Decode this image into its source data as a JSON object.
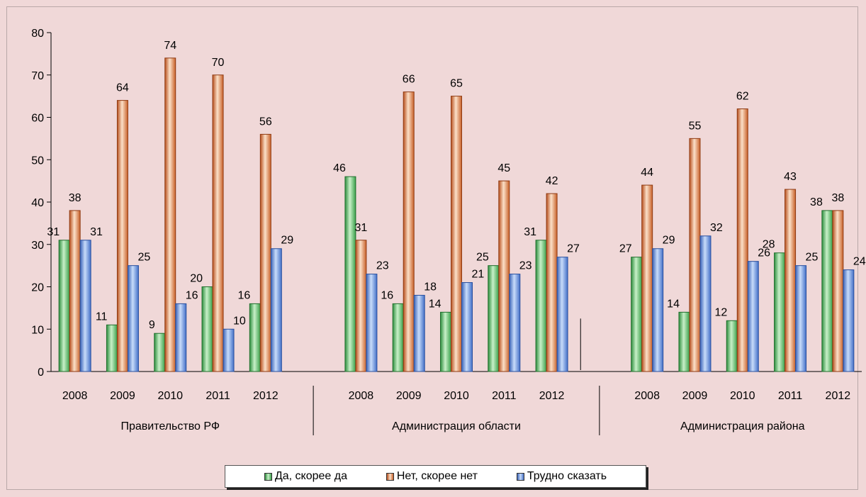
{
  "chart_data": {
    "type": "bar",
    "ylim": [
      0,
      80
    ],
    "yticks": [
      0,
      10,
      20,
      30,
      40,
      50,
      60,
      70,
      80
    ],
    "grid": false,
    "legend_position": "bottom",
    "groups": [
      {
        "name": "Правительство РФ",
        "categories": [
          "2008",
          "2009",
          "2010",
          "2011",
          "2012"
        ],
        "series": [
          {
            "name": "Да, скорее да",
            "values": [
              31,
              11,
              9,
              20,
              16
            ]
          },
          {
            "name": "Нет, скорее нет",
            "values": [
              38,
              64,
              74,
              70,
              56
            ]
          },
          {
            "name": "Трудно сказать",
            "values": [
              31,
              25,
              16,
              10,
              29
            ]
          }
        ]
      },
      {
        "name": "Администрация области",
        "categories": [
          "2008",
          "2009",
          "2010",
          "2011",
          "2012"
        ],
        "series": [
          {
            "name": "Да, скорее да",
            "values": [
              46,
              16,
              14,
              25,
              31
            ]
          },
          {
            "name": "Нет, скорее нет",
            "values": [
              31,
              66,
              65,
              45,
              42
            ]
          },
          {
            "name": "Трудно сказать",
            "values": [
              23,
              18,
              21,
              23,
              27
            ]
          }
        ]
      },
      {
        "name": "Администрация района",
        "categories": [
          "2008",
          "2009",
          "2010",
          "2011",
          "2012"
        ],
        "series": [
          {
            "name": "Да, скорее да",
            "values": [
              27,
              14,
              12,
              28,
              38
            ]
          },
          {
            "name": "Нет, скорее нет",
            "values": [
              44,
              55,
              62,
              43,
              38
            ]
          },
          {
            "name": "Трудно сказать",
            "values": [
              29,
              32,
              26,
              25,
              24
            ]
          }
        ]
      }
    ],
    "series_colors": [
      "#4cc060",
      "#e0783c",
      "#5b8fe0"
    ],
    "legend": [
      "Да, скорее да",
      "Нет, скорее нет",
      "Трудно сказать"
    ]
  }
}
